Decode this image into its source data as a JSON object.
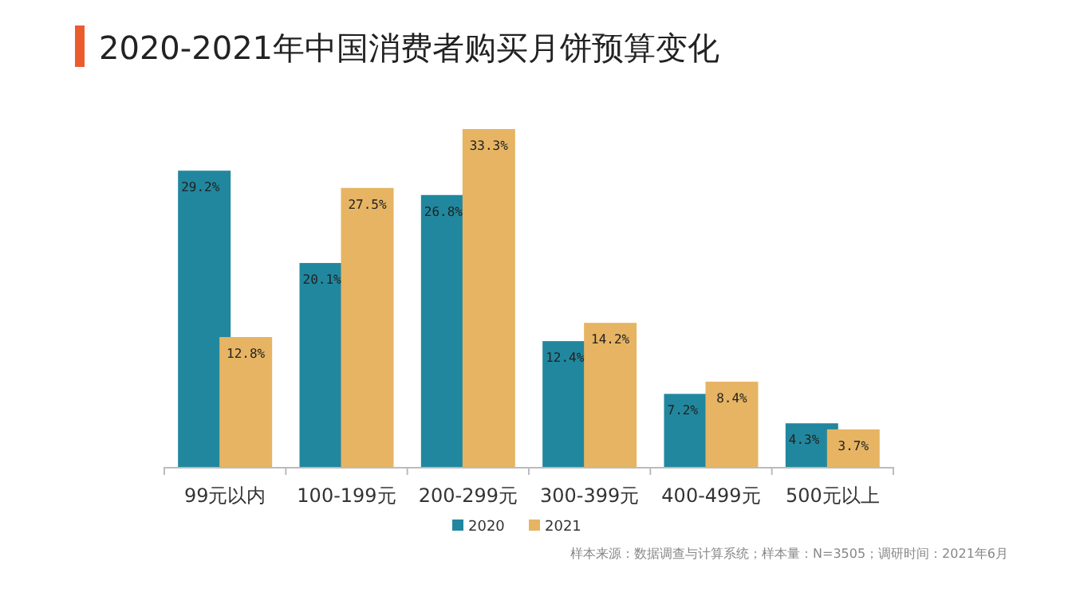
{
  "chart_data": {
    "type": "bar",
    "title": "2020-2021年中国消费者购买月饼预算变化",
    "categories": [
      "99元以内",
      "100-199元",
      "200-299元",
      "300-399元",
      "400-499元",
      "500元以上"
    ],
    "series": [
      {
        "name": "2020",
        "color": "#21879e",
        "values": [
          29.2,
          20.1,
          26.8,
          12.4,
          7.2,
          4.3
        ],
        "value_labels": [
          "29.2%",
          "20.1%",
          "26.8%",
          "12.4%",
          "7.2%",
          "4.3%"
        ]
      },
      {
        "name": "2021",
        "color": "#e6b463",
        "values": [
          12.8,
          27.5,
          33.3,
          14.2,
          8.4,
          3.7
        ],
        "value_labels": [
          "12.8%",
          "27.5%",
          "33.3%",
          "14.2%",
          "8.4%",
          "3.7%"
        ]
      }
    ],
    "legend": "bottom",
    "annotations": [
      "样本来源：数据调查与计算系统；样本量：N=3505；调研时间：2021年6月"
    ]
  }
}
